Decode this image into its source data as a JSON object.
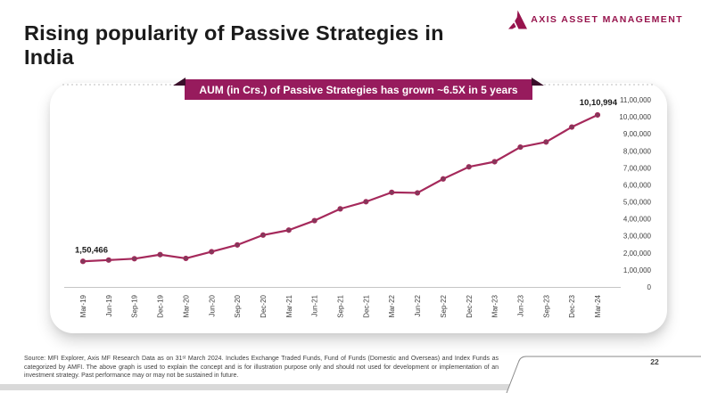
{
  "page": {
    "title_line1": "Rising popularity of Passive Strategies in",
    "title_line2": "India",
    "page_number": "22"
  },
  "logo": {
    "text": "AXIS ASSET MANAGEMENT",
    "icon": "axis-triangle-logo",
    "brand_color": "#97144D"
  },
  "banner": {
    "text": "AUM (in Crs.) of Passive Strategies has grown ~6.5X in 5 years",
    "bg_color": "#971B5D",
    "fold_color": "#3a0e2a"
  },
  "footer": {
    "source_text": "Source: MFI Explorer, Axis MF Research Data as on 31ˢᵗ March 2024. Includes Exchange Traded Funds, Fund of Funds (Domestic and Overseas) and Index Funds as categorized by AMFI. The above graph is used to explain the concept and is for illustration purpose only and should not used for development or implementation of an investment strategy. Past performance may or may not be sustained in future."
  },
  "chart_data": {
    "type": "line",
    "title": "AUM (in Crs.) of Passive Strategies has grown ~6.5X in 5 years",
    "xlabel": "",
    "ylabel": "",
    "categories": [
      "Mar-19",
      "Jun-19",
      "Sep-19",
      "Dec-19",
      "Mar-20",
      "Jun-20",
      "Sep-20",
      "Dec-20",
      "Mar-21",
      "Jun-21",
      "Sep-21",
      "Dec-21",
      "Mar-22",
      "Jun-22",
      "Sep-22",
      "Dec-22",
      "Mar-23",
      "Jun-23",
      "Sep-23",
      "Dec-23",
      "Mar-24"
    ],
    "values": [
      150466,
      158000,
      166000,
      190000,
      168000,
      207000,
      247000,
      305000,
      334000,
      390000,
      459000,
      501000,
      556000,
      553000,
      635000,
      706000,
      736000,
      822000,
      852000,
      940000,
      1010994
    ],
    "first_point_label": "1,50,466",
    "last_point_label": "10,10,994",
    "y_ticks": [
      "0",
      "1,00,000",
      "2,00,000",
      "3,00,000",
      "4,00,000",
      "5,00,000",
      "6,00,000",
      "7,00,000",
      "8,00,000",
      "9,00,000",
      "10,00,000",
      "11,00,000"
    ],
    "ylim": [
      0,
      1100000
    ],
    "y_tick_step": 100000,
    "grid": "off",
    "legend": "none",
    "line_color": "#A5295B",
    "marker_color": "#82395A",
    "axis_label_color": "#404040",
    "data_label_color": "#1a1a1a"
  }
}
